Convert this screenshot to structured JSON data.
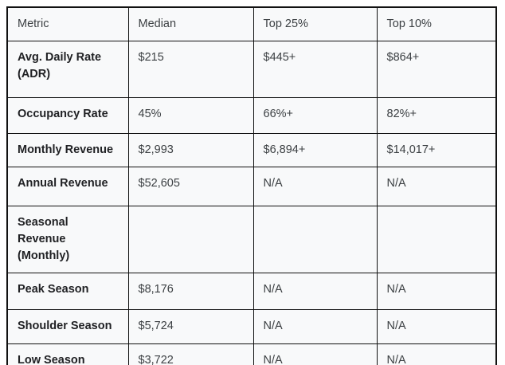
{
  "chart_data": {
    "type": "table",
    "columns": [
      "Metric",
      "Median",
      "Top 25%",
      "Top 10%"
    ],
    "rows": [
      {
        "metric": "Avg. Daily Rate (ADR)",
        "values": [
          "$215",
          "$445+",
          "$864+"
        ]
      },
      {
        "metric": "Occupancy Rate",
        "values": [
          "45%",
          "66%+",
          "82%+"
        ]
      },
      {
        "metric": "Monthly Revenue",
        "values": [
          "$2,993",
          "$6,894+",
          "$14,017+"
        ]
      },
      {
        "metric": "Annual Revenue",
        "values": [
          "$52,605",
          "N/A",
          "N/A"
        ]
      },
      {
        "metric": "Seasonal Revenue (Monthly)",
        "values": [
          "",
          "",
          ""
        ]
      },
      {
        "metric": "Peak Season",
        "values": [
          "$8,176",
          "N/A",
          "N/A"
        ]
      },
      {
        "metric": "Shoulder Season",
        "values": [
          "$5,724",
          "N/A",
          "N/A"
        ]
      },
      {
        "metric": "Low Season",
        "values": [
          "$3,722",
          "N/A",
          "N/A"
        ]
      }
    ],
    "colors": {
      "border": "#111111",
      "cell_background": "#f8f9fa",
      "header_text": "#3c4043",
      "metric_label_text": "#202124",
      "value_text": "#3c4043"
    },
    "layout": {
      "grid": true,
      "header_row": true,
      "metric_labels_bold": true
    }
  }
}
